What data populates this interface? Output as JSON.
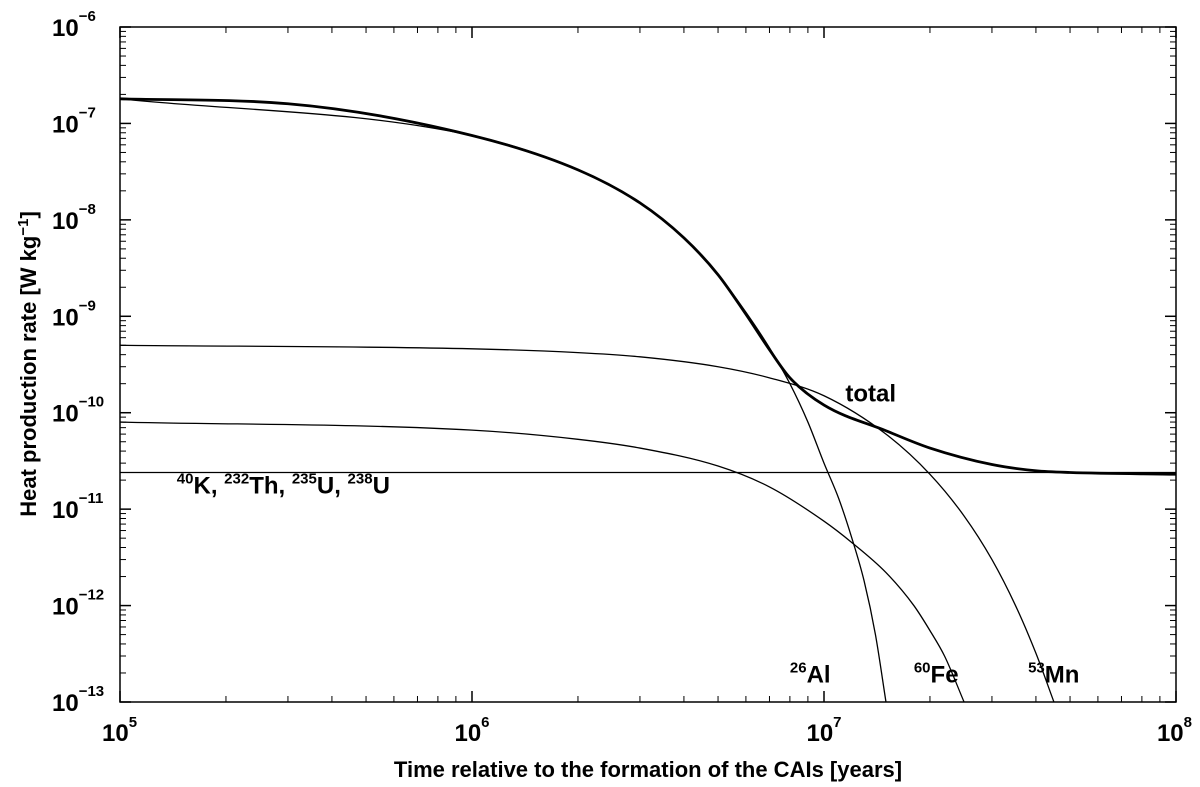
{
  "chart_data": {
    "type": "line",
    "title": "",
    "xlabel": "Time relative to the formation of the CAIs [years]",
    "ylabel": {
      "text": "Heat production rate [W kg",
      "superscript": "−1",
      "suffix": "]"
    },
    "x_scale": "log",
    "y_scale": "log",
    "xlim": [
      100000,
      100000000
    ],
    "ylim": [
      1e-13,
      1e-06
    ],
    "grid": false,
    "x_ticks": [
      {
        "value": 100000,
        "base": "10",
        "exp": "5"
      },
      {
        "value": 1000000,
        "base": "10",
        "exp": "6"
      },
      {
        "value": 10000000,
        "base": "10",
        "exp": "7"
      },
      {
        "value": 100000000,
        "base": "10",
        "exp": "8"
      }
    ],
    "y_ticks": [
      {
        "value": 1e-13,
        "base": "10",
        "exp": "−13"
      },
      {
        "value": 1e-12,
        "base": "10",
        "exp": "−12"
      },
      {
        "value": 1e-11,
        "base": "10",
        "exp": "−11"
      },
      {
        "value": 1e-10,
        "base": "10",
        "exp": "−10"
      },
      {
        "value": 1e-09,
        "base": "10",
        "exp": "−9"
      },
      {
        "value": 1e-08,
        "base": "10",
        "exp": "−8"
      },
      {
        "value": 1e-07,
        "base": "10",
        "exp": "−7"
      },
      {
        "value": 1e-06,
        "base": "10",
        "exp": "−6"
      }
    ],
    "series": [
      {
        "id": "total",
        "label": "total",
        "emphasis": true,
        "x": [
          100000,
          300000,
          1000000,
          2000000,
          3000000,
          4000000,
          5000000,
          6000000,
          7000000,
          8000000,
          10000000,
          15000000,
          20000000,
          30000000,
          40000000,
          50000000,
          100000000
        ],
        "y": [
          1.8e-07,
          1.6e-07,
          7.5e-08,
          3.3e-08,
          1.5e-08,
          6.5e-09,
          2.7e-09,
          1.05e-09,
          4.5e-10,
          2.3e-10,
          1.2e-10,
          6.5e-11,
          4.3e-11,
          2.9e-11,
          2.5e-11,
          2.4e-11,
          2.3e-11
        ]
      },
      {
        "id": "al26",
        "label_prefix": "26",
        "label": "Al",
        "x": [
          100000,
          1000000,
          2000000,
          3000000,
          4000000,
          5000000,
          6000000,
          7000000,
          8000000,
          9000000,
          10000000,
          11000000,
          12000000,
          13000000,
          14000000,
          15000000
        ],
        "y": [
          1.8e-07,
          7.5e-08,
          3.3e-08,
          1.5e-08,
          6.5e-09,
          2.7e-09,
          1.1e-09,
          4.7e-10,
          2e-10,
          8e-11,
          3e-11,
          1.3e-11,
          5e-12,
          1.8e-12,
          5e-13,
          1e-13
        ]
      },
      {
        "id": "fe60",
        "label_prefix": "60",
        "label": "Fe",
        "x": [
          100000,
          1000000,
          2000000,
          3000000,
          5000000,
          7000000,
          10000000,
          12000000,
          15000000,
          18000000,
          20000000,
          22000000,
          25000000
        ],
        "y": [
          8e-11,
          6.6e-11,
          5.3e-11,
          4.3e-11,
          2.8e-11,
          1.7e-11,
          7.5e-12,
          4.5e-12,
          2.2e-12,
          1e-12,
          5.5e-13,
          3e-13,
          1e-13
        ]
      },
      {
        "id": "mn53",
        "label_prefix": "53",
        "label": "Mn",
        "x": [
          100000,
          1000000,
          2000000,
          3000000,
          5000000,
          7000000,
          10000000,
          15000000,
          20000000,
          25000000,
          30000000,
          35000000,
          40000000,
          45000000
        ],
        "y": [
          5e-10,
          4.6e-10,
          4.2e-10,
          3.8e-10,
          3e-10,
          2.3e-10,
          1.5e-10,
          6e-11,
          2.3e-11,
          8.5e-12,
          3e-12,
          1e-12,
          3.2e-13,
          1e-13
        ]
      },
      {
        "id": "long-lived",
        "label": "40K, 232Th, 235U, 238U",
        "x": [
          100000,
          100000000
        ],
        "y": [
          2.4e-11,
          2.4e-11
        ]
      }
    ],
    "annotations": {
      "total": {
        "text": "total",
        "at_x": 11500000,
        "at_y": 1.3e-10
      },
      "al26": {
        "sup": "26",
        "text": "Al",
        "at_x": 8000000,
        "at_y": 1.6e-13
      },
      "fe60": {
        "sup": "60",
        "text": "Fe",
        "at_x": 18000000,
        "at_y": 1.6e-13
      },
      "mn53": {
        "sup": "53",
        "text": "Mn",
        "at_x": 38000000,
        "at_y": 1.6e-13
      },
      "long_lived": {
        "at_x": 145000,
        "at_y": 1.45e-11,
        "parts": [
          {
            "sup": "40",
            "text": "K, "
          },
          {
            "sup": "232",
            "text": "Th, "
          },
          {
            "sup": "235",
            "text": "U, "
          },
          {
            "sup": "238",
            "text": "U"
          }
        ]
      }
    }
  }
}
